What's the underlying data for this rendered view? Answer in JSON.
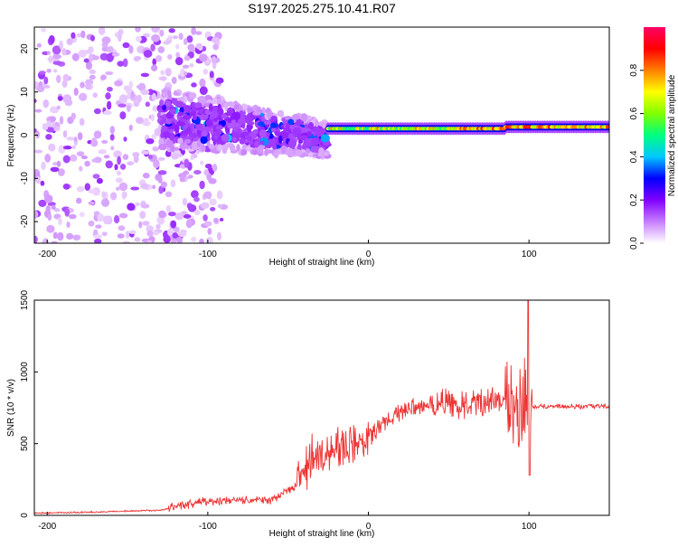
{
  "page_title": "S197.2025.275.10.41.R07",
  "chart_data": [
    {
      "type": "heatmap",
      "xlabel": "Height of straight line (km)",
      "ylabel": "Frequency (Hz)",
      "xlim": [
        -208,
        150
      ],
      "ylim": [
        -25,
        25
      ],
      "xticks": [
        -200,
        -100,
        0,
        100
      ],
      "xtick_labels": [
        "-200",
        "-100",
        "0",
        "100"
      ],
      "yticks": [
        -20,
        -10,
        0,
        10,
        20
      ],
      "ytick_labels": [
        "-20",
        "-10",
        "0",
        "10",
        "20"
      ],
      "colorbar": {
        "label": "Normalized spectral amplitude",
        "range": [
          0,
          1
        ],
        "ticks": [
          0.0,
          0.2,
          0.4,
          0.6,
          0.8
        ],
        "tick_labels": [
          "0.0",
          "0.2",
          "0.4",
          "0.6",
          "0.8"
        ],
        "colors": [
          "#ffffff",
          "#c77dff",
          "#8000ff",
          "#0000ff",
          "#00c8ff",
          "#00ff80",
          "#80ff00",
          "#ffff00",
          "#ff8000",
          "#ff0000",
          "#ff0066"
        ]
      },
      "features": [
        {
          "region": "noise",
          "x_range": [
            -208,
            -130
          ],
          "freq_range": [
            -25,
            25
          ],
          "amplitude": 0.06
        },
        {
          "region": "scattered",
          "x_range": [
            -130,
            -25
          ],
          "freq_range": [
            -10,
            10
          ],
          "amplitude": 0.15
        },
        {
          "region": "narrow-line",
          "x_range": [
            -25,
            150
          ],
          "freq_range": [
            0.5,
            2.5
          ],
          "amplitude": 0.8
        }
      ]
    },
    {
      "type": "line",
      "xlabel": "Height of straight line (km)",
      "ylabel": "SNR (10 * v/v)",
      "xlim": [
        -208,
        150
      ],
      "ylim": [
        0,
        1500
      ],
      "xticks": [
        -200,
        -100,
        0,
        100
      ],
      "xtick_labels": [
        "-200",
        "-100",
        "0",
        "100"
      ],
      "yticks": [
        0,
        500,
        1000,
        1500
      ],
      "ytick_labels": [
        "0",
        "500",
        "1000",
        "1500"
      ],
      "line_color": "#ee3333",
      "x": [
        -208,
        -180,
        -150,
        -130,
        -120,
        -100,
        -80,
        -60,
        -45,
        -35,
        -25,
        -15,
        -5,
        0,
        10,
        20,
        30,
        45,
        60,
        75,
        85,
        95,
        100,
        110,
        130,
        150
      ],
      "y": [
        15,
        20,
        30,
        35,
        60,
        100,
        105,
        110,
        200,
        400,
        470,
        480,
        500,
        560,
        650,
        720,
        760,
        790,
        760,
        790,
        810,
        800,
        760,
        760,
        760,
        760
      ]
    }
  ]
}
